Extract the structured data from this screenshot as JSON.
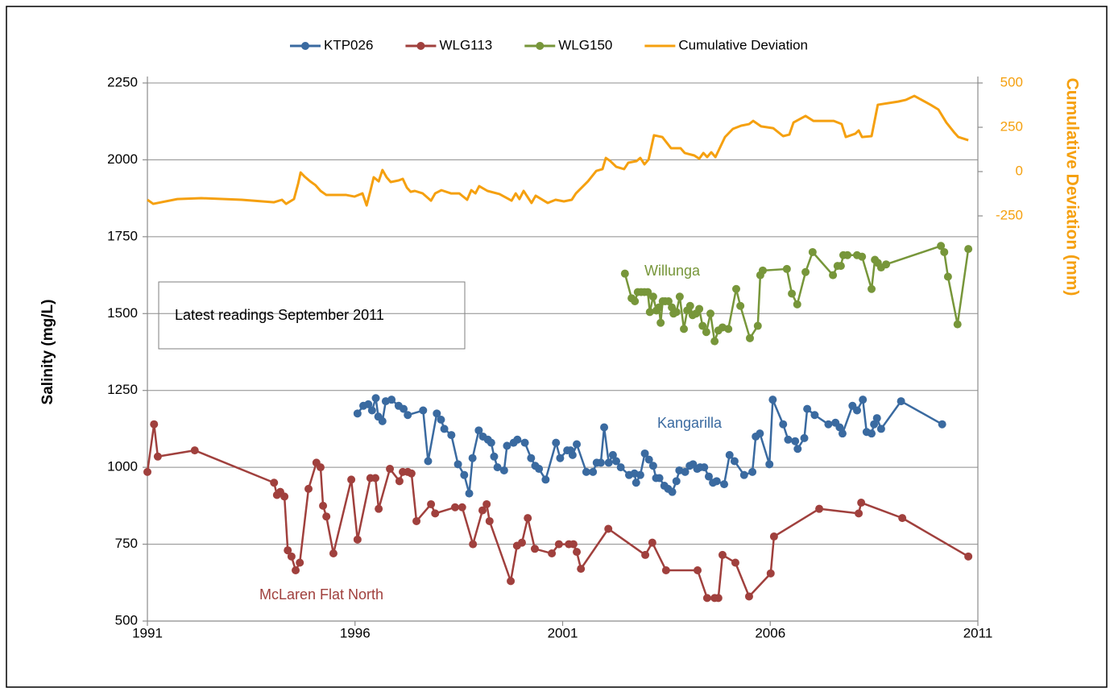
{
  "chart_data": {
    "type": "line",
    "y_label": "Salinity (mg/L)",
    "y2_label": "Cumulative Deviation (mm)",
    "annotations": [
      "Willunga",
      "Kangarilla",
      "McLaren Flat North",
      "Latest readings September 2011"
    ],
    "xlim": [
      1991,
      2011
    ],
    "xticks": [
      1991,
      1996,
      2001,
      2006,
      2011
    ],
    "ylim": [
      500,
      2250
    ],
    "yticks": [
      500,
      750,
      1000,
      1250,
      1500,
      1750,
      2000,
      2250
    ],
    "y2lim": [
      -2536,
      500
    ],
    "y2ticks": [
      -250,
      0,
      250,
      500
    ],
    "grid": true,
    "legend": "top",
    "series": [
      {
        "name": "KTP026",
        "color": "#3a6aa0",
        "markers": true,
        "x": [
          1996.06,
          1996.2,
          1996.32,
          1996.41,
          1996.5,
          1996.56,
          1996.66,
          1996.74,
          1996.88,
          1997.05,
          1997.17,
          1997.27,
          1997.64,
          1997.76,
          1997.97,
          1998.07,
          1998.15,
          1998.32,
          1998.48,
          1998.63,
          1998.75,
          1998.83,
          1998.98,
          1999.08,
          1999.2,
          1999.28,
          1999.35,
          1999.43,
          1999.59,
          1999.66,
          1999.82,
          1999.91,
          2000.09,
          2000.24,
          2000.34,
          2000.43,
          2000.59,
          2000.84,
          2000.94,
          2001.11,
          2001.19,
          2001.24,
          2001.34,
          2001.57,
          2001.73,
          2001.82,
          2001.92,
          2002.0,
          2002.11,
          2002.21,
          2002.29,
          2002.4,
          2002.6,
          2002.73,
          2002.77,
          2002.87,
          2002.98,
          2003.08,
          2003.18,
          2003.25,
          2003.33,
          2003.45,
          2003.54,
          2003.64,
          2003.74,
          2003.81,
          2003.95,
          2004.06,
          2004.14,
          2004.24,
          2004.31,
          2004.41,
          2004.52,
          2004.62,
          2004.71,
          2004.89,
          2005.02,
          2005.14,
          2005.37,
          2005.57,
          2005.65,
          2005.75,
          2005.98,
          2006.06,
          2006.31,
          2006.43,
          2006.6,
          2006.66,
          2006.82,
          2006.89,
          2007.07,
          2007.4,
          2007.57,
          2007.67,
          2007.74,
          2007.98,
          2008.09,
          2008.23,
          2008.32,
          2008.44,
          2008.5,
          2008.57,
          2008.67,
          2009.15,
          2010.14
        ],
        "values": [
          1175,
          1200,
          1205,
          1185,
          1225,
          1165,
          1150,
          1215,
          1220,
          1200,
          1190,
          1170,
          1185,
          1020,
          1175,
          1155,
          1125,
          1105,
          1010,
          975,
          915,
          1030,
          1120,
          1100,
          1090,
          1080,
          1035,
          1000,
          990,
          1070,
          1080,
          1090,
          1080,
          1030,
          1005,
          995,
          960,
          1080,
          1030,
          1055,
          1055,
          1040,
          1075,
          985,
          985,
          1015,
          1015,
          1130,
          1015,
          1040,
          1020,
          1000,
          975,
          980,
          950,
          975,
          1045,
          1025,
          1005,
          965,
          965,
          940,
          930,
          920,
          955,
          990,
          985,
          1005,
          1010,
          995,
          1000,
          1000,
          970,
          950,
          955,
          945,
          1040,
          1020,
          975,
          985,
          1100,
          1110,
          1010,
          1220,
          1140,
          1090,
          1085,
          1060,
          1095,
          1190,
          1170,
          1140,
          1145,
          1130,
          1110,
          1200,
          1185,
          1220,
          1115,
          1110,
          1140,
          1160,
          1125,
          1215,
          1140
        ]
      },
      {
        "name": "WLG113",
        "color": "#a0403d",
        "markers": true,
        "x": [
          1991.0,
          1991.16,
          1991.25,
          1992.14,
          1994.05,
          1994.12,
          1994.2,
          1994.3,
          1994.38,
          1994.47,
          1994.57,
          1994.67,
          1994.88,
          1995.07,
          1995.17,
          1995.23,
          1995.31,
          1995.48,
          1995.91,
          1996.06,
          1996.37,
          1996.49,
          1996.57,
          1996.84,
          1997.07,
          1997.15,
          1997.27,
          1997.36,
          1997.48,
          1997.83,
          1997.93,
          1998.41,
          1998.58,
          1998.84,
          1999.07,
          1999.17,
          1999.24,
          1999.75,
          1999.9,
          2000.02,
          2000.16,
          2000.33,
          2000.74,
          2000.91,
          2001.15,
          2001.26,
          2001.34,
          2001.44,
          2002.1,
          2002.99,
          2003.16,
          2003.49,
          2004.25,
          2004.48,
          2004.66,
          2004.75,
          2004.85,
          2005.16,
          2005.49,
          2006.01,
          2006.09,
          2007.18,
          2008.13,
          2008.19,
          2009.18,
          2010.77
        ],
        "values": [
          985,
          1140,
          1035,
          1055,
          950,
          910,
          920,
          905,
          730,
          710,
          665,
          690,
          930,
          1015,
          1000,
          875,
          840,
          720,
          960,
          765,
          965,
          965,
          865,
          995,
          955,
          985,
          985,
          980,
          825,
          880,
          850,
          870,
          870,
          750,
          860,
          880,
          825,
          630,
          745,
          755,
          835,
          735,
          720,
          750,
          750,
          750,
          725,
          670,
          800,
          715,
          755,
          665,
          665,
          575,
          575,
          575,
          715,
          690,
          580,
          655,
          775,
          865,
          850,
          885,
          835,
          710
        ]
      },
      {
        "name": "WLG150",
        "color": "#77963a",
        "markers": true,
        "x": [
          2002.5,
          2002.66,
          2002.74,
          2002.81,
          2002.89,
          2002.97,
          2003.05,
          2003.1,
          2003.18,
          2003.26,
          2003.32,
          2003.36,
          2003.41,
          2003.47,
          2003.55,
          2003.63,
          2003.67,
          2003.74,
          2003.82,
          2003.92,
          2004.0,
          2004.07,
          2004.13,
          2004.21,
          2004.29,
          2004.37,
          2004.46,
          2004.56,
          2004.66,
          2004.75,
          2004.85,
          2004.99,
          2005.18,
          2005.28,
          2005.51,
          2005.7,
          2005.76,
          2005.82,
          2006.4,
          2006.52,
          2006.65,
          2006.85,
          2007.02,
          2007.51,
          2007.62,
          2007.7,
          2007.76,
          2007.86,
          2008.09,
          2008.21,
          2008.44,
          2008.52,
          2008.59,
          2008.67,
          2008.79,
          2010.11,
          2010.19,
          2010.28,
          2010.51,
          2010.77
        ],
        "values": [
          1630,
          1550,
          1540,
          1570,
          1570,
          1570,
          1570,
          1505,
          1555,
          1510,
          1520,
          1470,
          1540,
          1540,
          1540,
          1520,
          1500,
          1505,
          1555,
          1450,
          1510,
          1525,
          1495,
          1500,
          1515,
          1460,
          1440,
          1500,
          1410,
          1445,
          1455,
          1450,
          1580,
          1525,
          1420,
          1460,
          1625,
          1640,
          1645,
          1565,
          1530,
          1635,
          1700,
          1625,
          1655,
          1655,
          1690,
          1690,
          1690,
          1685,
          1580,
          1675,
          1665,
          1650,
          1660,
          1720,
          1700,
          1620,
          1465,
          1710
        ]
      },
      {
        "name": "Cumulative Deviation",
        "color": "#f5a00f",
        "markers": false,
        "axis": "y2",
        "x": [
          1991.0,
          1991.14,
          1991.72,
          1992.3,
          1993.27,
          1994.05,
          1994.24,
          1994.34,
          1994.53,
          1994.63,
          1994.69,
          1994.78,
          1994.92,
          1995.05,
          1995.17,
          1995.31,
          1995.5,
          1995.79,
          1995.99,
          1996.18,
          1996.28,
          1996.37,
          1996.45,
          1996.57,
          1996.66,
          1996.76,
          1996.86,
          1997.05,
          1997.15,
          1997.25,
          1997.34,
          1997.44,
          1997.63,
          1997.83,
          1997.93,
          1998.08,
          1998.31,
          1998.51,
          1998.7,
          1998.8,
          1998.9,
          1998.99,
          1999.19,
          1999.48,
          1999.77,
          1999.87,
          1999.96,
          2000.06,
          2000.25,
          2000.35,
          2000.64,
          2000.83,
          2001.03,
          2001.22,
          2001.32,
          2001.61,
          2001.81,
          2001.96,
          2002.04,
          2002.15,
          2002.29,
          2002.48,
          2002.58,
          2002.78,
          2002.87,
          2002.97,
          2003.07,
          2003.2,
          2003.4,
          2003.61,
          2003.84,
          2003.94,
          2004.17,
          2004.29,
          2004.39,
          2004.48,
          2004.58,
          2004.68,
          2004.91,
          2005.1,
          2005.3,
          2005.49,
          2005.59,
          2005.78,
          2006.07,
          2006.31,
          2006.46,
          2006.56,
          2006.85,
          2007.04,
          2007.53,
          2007.72,
          2007.82,
          2008.05,
          2008.13,
          2008.21,
          2008.44,
          2008.59,
          2009.08,
          2009.27,
          2009.47,
          2009.86,
          2010.05,
          2010.24,
          2010.44,
          2010.53,
          2010.77
        ],
        "values": [
          -159,
          -182,
          -155,
          -150,
          -159,
          -173,
          -159,
          -182,
          -155,
          -68,
          -5,
          -27,
          -55,
          -77,
          -109,
          -132,
          -132,
          -132,
          -141,
          -123,
          -191,
          -109,
          -32,
          -55,
          9,
          -32,
          -59,
          -50,
          -41,
          -91,
          -114,
          -109,
          -123,
          -164,
          -123,
          -105,
          -123,
          -123,
          -159,
          -105,
          -123,
          -82,
          -109,
          -127,
          -164,
          -123,
          -155,
          -109,
          -177,
          -136,
          -177,
          -159,
          -168,
          -159,
          -123,
          -55,
          4,
          14,
          77,
          59,
          27,
          14,
          50,
          59,
          77,
          41,
          68,
          205,
          195,
          132,
          132,
          105,
          91,
          73,
          105,
          82,
          109,
          82,
          195,
          241,
          259,
          268,
          286,
          255,
          245,
          200,
          209,
          277,
          314,
          286,
          286,
          268,
          195,
          214,
          232,
          195,
          200,
          377,
          395,
          405,
          427,
          377,
          350,
          277,
          218,
          195,
          177
        ]
      }
    ]
  }
}
